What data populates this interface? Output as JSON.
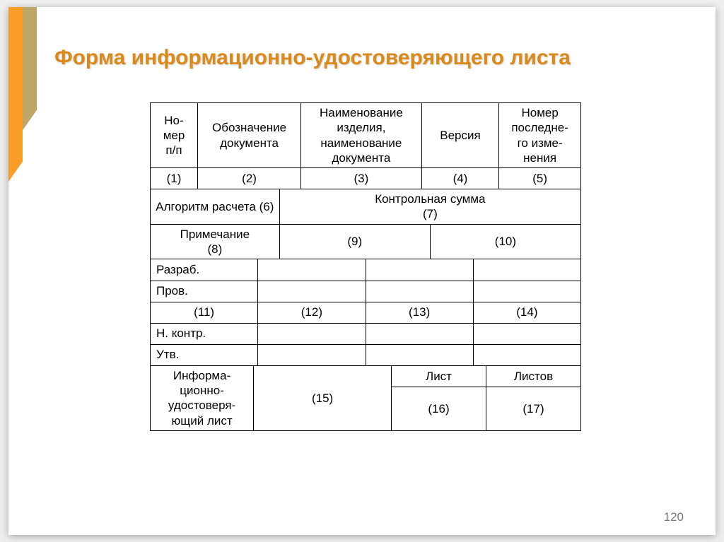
{
  "title": "Форма информационно-удостоверяющего листа",
  "pageNumber": "120",
  "section1": {
    "headers": {
      "c1": "Но-\nмер\nп/п",
      "c2": "Обозначение документа",
      "c3": "Наименование изделия, наименование документа",
      "c4": "Версия",
      "c5": "Номер последне-\nго изме-\nнения"
    },
    "nums": {
      "c1": "(1)",
      "c2": "(2)",
      "c3": "(3)",
      "c4": "(4)",
      "c5": "(5)"
    }
  },
  "section2": {
    "left": "Алгоритм расчета (6)",
    "right": "Контрольная сумма\n(7)"
  },
  "section3": {
    "c1": "Примечание\n(8)",
    "c2": "(9)",
    "c3": "(10)"
  },
  "section4": {
    "r1": "Разраб.",
    "r2": "Пров.",
    "r3c1": "(11)",
    "r3c2": "(12)",
    "r3c3": "(13)",
    "r3c4": "(14)",
    "r4": "Н. контр.",
    "r5": "Утв."
  },
  "section5": {
    "c1": "Информа-\nционно-\nудостоверя-\nющий лист",
    "c2": "(15)",
    "c3top": "Лист",
    "c3bot": "(16)",
    "c4top": "Листов",
    "c4bot": "(17)"
  },
  "style": {
    "titleColor": "#d98a1a",
    "titleFontSize": 30,
    "cellFontSize": 17,
    "borderColor": "#000000",
    "background": "#ffffff",
    "pageNumColor": "#777777",
    "tableWidthPx": 610,
    "section1ColFractions": [
      11,
      24,
      28,
      18,
      19
    ],
    "section2ColFractions": [
      30,
      70
    ],
    "section3ColFractions": [
      30,
      35,
      35
    ],
    "section4ColFractions": [
      25,
      25,
      25,
      25
    ],
    "section5ColFractions": [
      24,
      32,
      22,
      22
    ]
  }
}
